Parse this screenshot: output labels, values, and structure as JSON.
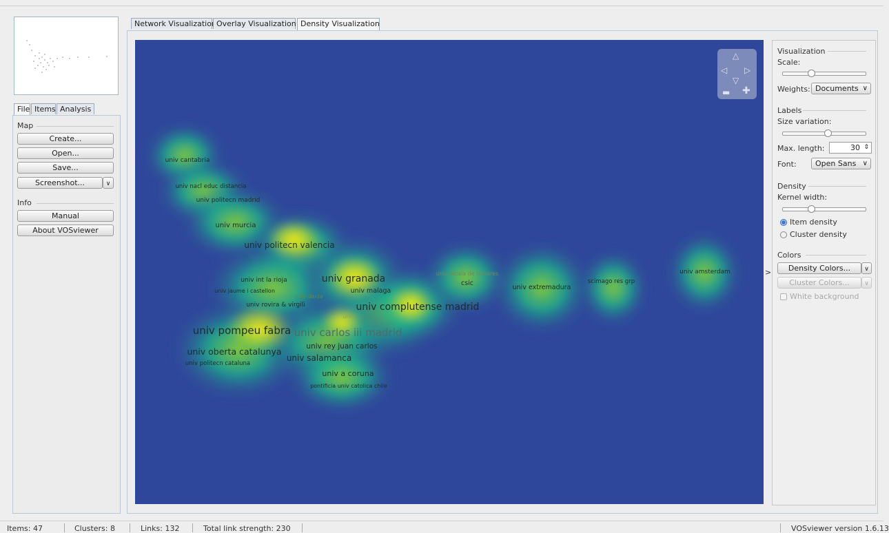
{
  "tabs_left": [
    {
      "label": "File",
      "active": true
    },
    {
      "label": "Items",
      "active": false
    },
    {
      "label": "Analysis",
      "active": false
    }
  ],
  "map_section": {
    "title": "Map",
    "create": "Create...",
    "open": "Open...",
    "save": "Save...",
    "screenshot": "Screenshot..."
  },
  "info_section": {
    "title": "Info",
    "manual": "Manual",
    "about": "About VOSviewer"
  },
  "vis_tabs": [
    {
      "label": "Network Visualization",
      "active": false
    },
    {
      "label": "Overlay Visualization",
      "active": false
    },
    {
      "label": "Density Visualization",
      "active": true
    }
  ],
  "map_labels": [
    "univ cantabria",
    "univ nacl educ distancia",
    "univ politecn madrid",
    "univ murcia",
    "univ politecn valencia",
    "univ int la rioja",
    "univ granada",
    "univ jaume i castellon",
    "univ lleida",
    "univ malaga",
    "univ rovira & virgili",
    "univ complutense madrid",
    "univ pompeu fabra",
    "univ carlos iii madrid",
    "univ rey juan carlos",
    "univ oberta catalunya",
    "univ salamanca",
    "univ politecn cataluna",
    "univ a coruna",
    "pontificia univ catolica chile",
    "univ ",
    "univ alcala de henares",
    "csic",
    "univ extremadura",
    "scimago res grp",
    "univ amsterdam"
  ],
  "right_panel": {
    "visualization_title": "Visualization",
    "scale_label": "Scale:",
    "scale_level": 0.3,
    "weights_label": "Weights:",
    "weights_value": "Documents",
    "labels_title": "Labels",
    "size_variation_label": "Size variation:",
    "size_variation_level": 0.5,
    "max_length_label": "Max. length:",
    "max_length_value": "30",
    "font_label": "Font:",
    "font_value": "Open Sans",
    "density_title": "Density",
    "kernel_width_label": "Kernel width:",
    "kernel_width_level": 0.3,
    "item_density_label": "Item density",
    "cluster_density_label": "Cluster density",
    "colors_title": "Colors",
    "density_colors_label": "Density Colors...",
    "cluster_colors_label": "Cluster Colors...",
    "white_background_label": "White background"
  },
  "status": {
    "items": "Items:  47",
    "clusters": "Clusters:  8",
    "links": "Links:  132",
    "total_link_strength": "Total link strength:  230",
    "version": "VOSviewer version 1.6.13"
  },
  "colors": {
    "map_background": "#2f479a",
    "density_low": "#18b08c",
    "density_mid": "#7cc832",
    "density_high": "#f5e616"
  }
}
